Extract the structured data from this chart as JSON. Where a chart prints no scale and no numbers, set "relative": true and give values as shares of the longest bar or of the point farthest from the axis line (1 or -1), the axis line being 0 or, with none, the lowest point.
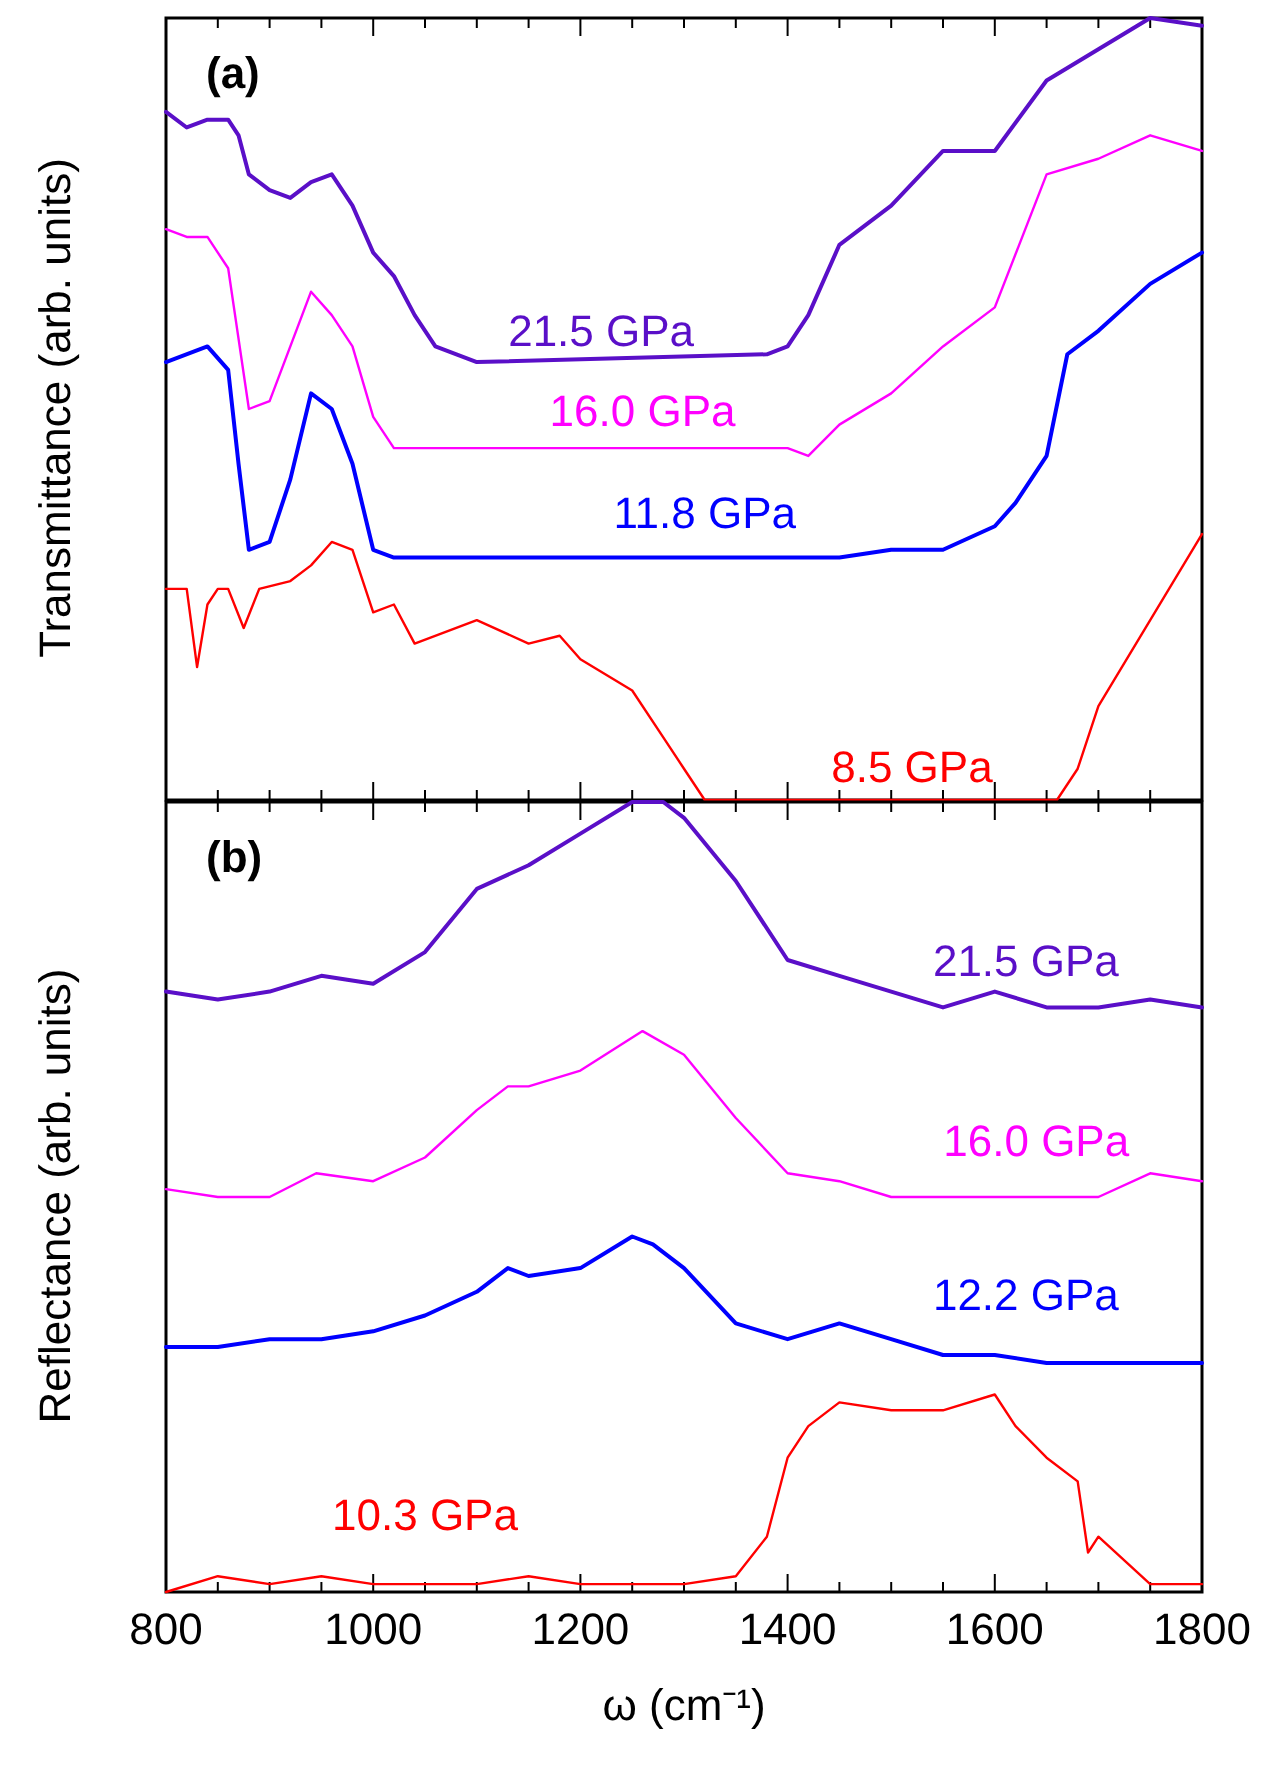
{
  "chart_data": [
    {
      "type": "line",
      "title": "(a)",
      "ylabel": "Transmittance (arb. units)",
      "relative": true,
      "tick_labels": false,
      "xlim": [
        800,
        1800
      ],
      "xticks": [
        800,
        {
          "value": 850,
          "label": null
        },
        1000,
        {
          "value": 950,
          "label": null
        },
        {
          "value": 900,
          "label": null
        },
        {
          "value": 1050,
          "label": null
        },
        1200,
        {
          "value": 1100,
          "label": null
        },
        {
          "value": 1150,
          "label": null
        },
        {
          "value": 1250,
          "label": null
        },
        1400,
        {
          "value": 1300,
          "label": null
        },
        {
          "value": 1350,
          "label": null
        },
        {
          "value": 1450,
          "label": null
        },
        1600,
        {
          "value": 1500,
          "label": null
        },
        {
          "value": 1550,
          "label": null
        },
        {
          "value": 1650,
          "label": null
        },
        1800,
        {
          "value": 1700,
          "label": null
        },
        {
          "value": 1750,
          "label": null
        }
      ],
      "series": [
        {
          "name": "21.5 GPa",
          "color": "#5a0fc8",
          "x": [
            800,
            820,
            840,
            860,
            870,
            880,
            900,
            920,
            940,
            960,
            980,
            1000,
            1020,
            1040,
            1060,
            1100,
            1380,
            1400,
            1420,
            1450,
            1500,
            1550,
            1600,
            1650,
            1700,
            1750,
            1800
          ],
          "values": [
            0.88,
            0.86,
            0.87,
            0.87,
            0.85,
            0.8,
            0.78,
            0.77,
            0.79,
            0.8,
            0.76,
            0.7,
            0.67,
            0.62,
            0.58,
            0.56,
            0.57,
            0.58,
            0.62,
            0.71,
            0.76,
            0.83,
            0.83,
            0.92,
            0.96,
            1.0,
            0.99
          ]
        },
        {
          "name": "16.0 GPa",
          "color": "#ff00ff",
          "x": [
            800,
            820,
            840,
            860,
            870,
            880,
            900,
            920,
            940,
            960,
            980,
            1000,
            1020,
            1040,
            1400,
            1420,
            1450,
            1500,
            1550,
            1600,
            1650,
            1700,
            1750,
            1800
          ],
          "values": [
            0.73,
            0.72,
            0.72,
            0.68,
            0.59,
            0.5,
            0.51,
            0.58,
            0.65,
            0.62,
            0.58,
            0.49,
            0.45,
            0.45,
            0.45,
            0.44,
            0.48,
            0.52,
            0.58,
            0.63,
            0.8,
            0.82,
            0.85,
            0.83
          ]
        },
        {
          "name": "11.8 GPa",
          "color": "#0000ff",
          "x": [
            800,
            840,
            860,
            870,
            880,
            900,
            920,
            940,
            960,
            980,
            1000,
            1020,
            1450,
            1500,
            1550,
            1600,
            1620,
            1650,
            1670,
            1700,
            1750,
            1800
          ],
          "values": [
            0.56,
            0.58,
            0.55,
            0.43,
            0.32,
            0.33,
            0.41,
            0.52,
            0.5,
            0.43,
            0.32,
            0.31,
            0.31,
            0.32,
            0.32,
            0.35,
            0.38,
            0.44,
            0.57,
            0.6,
            0.66,
            0.7
          ]
        },
        {
          "name": "8.5 GPa",
          "color": "#ff0000",
          "x": [
            800,
            820,
            830,
            840,
            850,
            860,
            875,
            890,
            920,
            940,
            960,
            980,
            1000,
            1020,
            1040,
            1100,
            1150,
            1180,
            1200,
            1250,
            1280,
            1300,
            1320,
            1660,
            1680,
            1700,
            1750,
            1800
          ],
          "values": [
            0.27,
            0.27,
            0.17,
            0.25,
            0.27,
            0.27,
            0.22,
            0.27,
            0.28,
            0.3,
            0.33,
            0.32,
            0.24,
            0.25,
            0.2,
            0.23,
            0.2,
            0.21,
            0.18,
            0.14,
            0.08,
            0.04,
            0,
            0,
            0.04,
            0.12,
            0.23,
            0.34
          ]
        }
      ]
    },
    {
      "type": "line",
      "title": "(b)",
      "ylabel": "Reflectance (arb. units)",
      "xlabel": "ω (cm⁻¹)",
      "relative": true,
      "tick_labels": "x",
      "xlim": [
        800,
        1800
      ],
      "xticks": [
        800,
        {
          "value": 850,
          "label": null
        },
        1000,
        {
          "value": 950,
          "label": null
        },
        {
          "value": 900,
          "label": null
        },
        {
          "value": 1050,
          "label": null
        },
        1200,
        {
          "value": 1100,
          "label": null
        },
        {
          "value": 1150,
          "label": null
        },
        {
          "value": 1250,
          "label": null
        },
        1400,
        {
          "value": 1300,
          "label": null
        },
        {
          "value": 1350,
          "label": null
        },
        {
          "value": 1450,
          "label": null
        },
        1600,
        {
          "value": 1500,
          "label": null
        },
        {
          "value": 1550,
          "label": null
        },
        {
          "value": 1650,
          "label": null
        },
        1800,
        {
          "value": 1700,
          "label": null
        },
        {
          "value": 1750,
          "label": null
        }
      ],
      "series": [
        {
          "name": "21.5 GPa",
          "color": "#5a0fc8",
          "x": [
            800,
            850,
            900,
            950,
            1000,
            1050,
            1100,
            1150,
            1200,
            1250,
            1280,
            1300,
            1350,
            1400,
            1450,
            1500,
            1550,
            1600,
            1650,
            1700,
            1750,
            1800
          ],
          "values": [
            0.76,
            0.75,
            0.76,
            0.78,
            0.77,
            0.81,
            0.89,
            0.92,
            0.96,
            1.0,
            1.0,
            0.98,
            0.9,
            0.8,
            0.78,
            0.76,
            0.74,
            0.76,
            0.74,
            0.74,
            0.75,
            0.74
          ]
        },
        {
          "name": "16.0 GPa",
          "color": "#ff00ff",
          "x": [
            800,
            850,
            900,
            945,
            1000,
            1050,
            1100,
            1130,
            1150,
            1200,
            1260,
            1300,
            1350,
            1400,
            1450,
            1500,
            1550,
            1600,
            1650,
            1700,
            1750,
            1800
          ],
          "values": [
            0.51,
            0.5,
            0.5,
            0.53,
            0.52,
            0.55,
            0.61,
            0.64,
            0.64,
            0.66,
            0.71,
            0.68,
            0.6,
            0.53,
            0.52,
            0.5,
            0.5,
            0.5,
            0.5,
            0.5,
            0.53,
            0.52
          ]
        },
        {
          "name": "12.2 GPa",
          "color": "#0000ff",
          "x": [
            800,
            850,
            900,
            950,
            1000,
            1050,
            1100,
            1130,
            1150,
            1200,
            1250,
            1270,
            1300,
            1350,
            1400,
            1450,
            1500,
            1550,
            1600,
            1650,
            1700,
            1750,
            1800
          ],
          "values": [
            0.31,
            0.31,
            0.32,
            0.32,
            0.33,
            0.35,
            0.38,
            0.41,
            0.4,
            0.41,
            0.45,
            0.44,
            0.41,
            0.34,
            0.32,
            0.34,
            0.32,
            0.3,
            0.3,
            0.29,
            0.29,
            0.29,
            0.29
          ]
        },
        {
          "name": "10.3 GPa",
          "color": "#ff0000",
          "x": [
            800,
            850,
            900,
            950,
            1000,
            1050,
            1100,
            1150,
            1200,
            1250,
            1300,
            1350,
            1380,
            1400,
            1420,
            1450,
            1500,
            1550,
            1600,
            1620,
            1650,
            1680,
            1690,
            1700,
            1750,
            1800
          ],
          "values": [
            0,
            0.02,
            0.01,
            0.02,
            0.01,
            0.01,
            0.01,
            0.02,
            0.01,
            0.01,
            0.01,
            0.02,
            0.07,
            0.17,
            0.21,
            0.24,
            0.23,
            0.23,
            0.25,
            0.21,
            0.17,
            0.14,
            0.05,
            0.07,
            0.01,
            0.01
          ]
        }
      ]
    }
  ]
}
